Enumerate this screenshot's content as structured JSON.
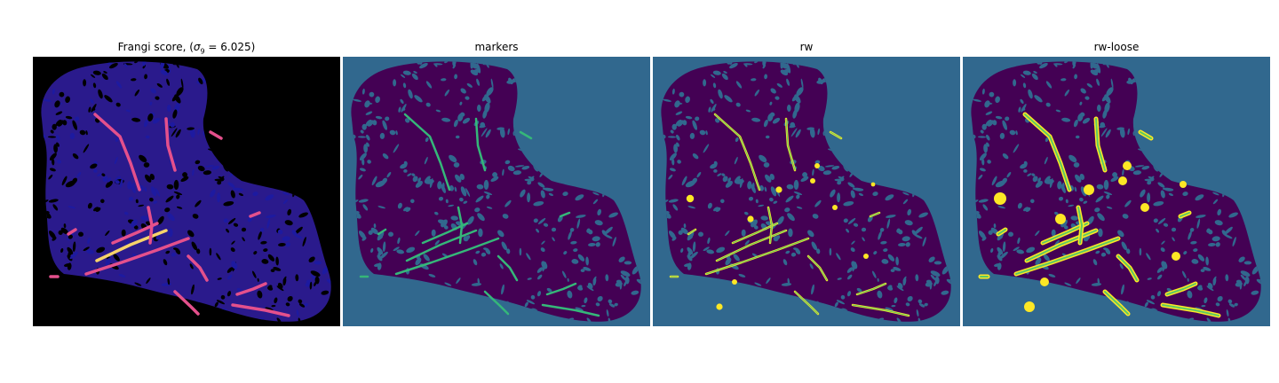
{
  "figure": {
    "panels": [
      {
        "id": "frangi",
        "title_prefix": "Frangi score, (",
        "title_sigma": "σ",
        "title_sub": "9",
        "title_suffix": " = 6.025)",
        "background": "#000000",
        "tissue": "#2a1a8c",
        "vessel": "#e4508c",
        "highlight": "#f7d36a"
      },
      {
        "id": "markers",
        "title": "markers",
        "background": "#31688e",
        "tissue": "#440154",
        "vessel": "#35b779"
      },
      {
        "id": "rw",
        "title": "rw",
        "background": "#31688e",
        "tissue": "#440154",
        "vessel": "#fde725"
      },
      {
        "id": "rw-loose",
        "title": "rw-loose",
        "background": "#31688e",
        "tissue": "#440154",
        "vessel": "#fde725"
      }
    ]
  }
}
